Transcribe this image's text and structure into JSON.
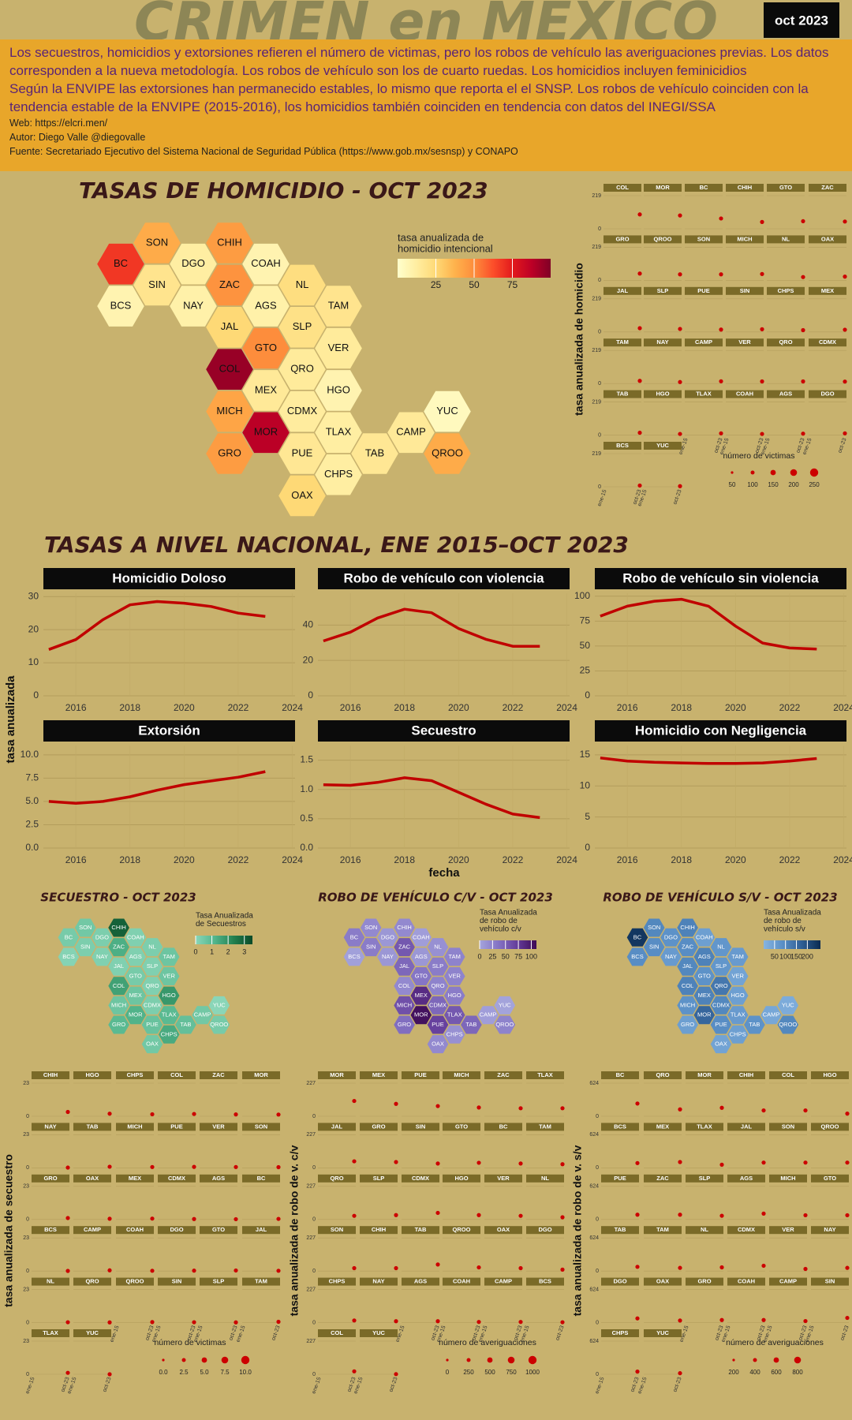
{
  "header": {
    "title": "CRIMEN en MEXICO",
    "badge": "oct 2023",
    "paragraphs": [
      "Los secuestros, homicidios y extorsiones refieren el número de victimas, pero los robos de vehículo las averiguaciones previas. Los datos corresponden a la nueva metodología. Los robos de vehículo son los de cuarto ruedas. Los homicidios incluyen feminicidios",
      "Según la ENVIPE las extorsiones han permanecido estables, lo mismo que reporta el el SNSP. Los robos de vehículo coinciden con la tendencia estable de la ENVIPE (2015-2016), los homicidios también coinciden en tendencia con datos del INEGI/SSA"
    ],
    "credits": [
      "Web: https://elcri.men/",
      "Autor: Diego Valle @diegovalle",
      "Fuente: Secretariado Ejecutivo del Sistema Nacional de Seguridad Pública (https://www.gob.mx/sesnsp) y CONAPO"
    ]
  },
  "states": [
    "BC",
    "SON",
    "CHIH",
    "DGO",
    "COAH",
    "SIN",
    "ZAC",
    "NL",
    "BCS",
    "NAY",
    "AGS",
    "TAM",
    "JAL",
    "SLP",
    "GTO",
    "VER",
    "COL",
    "QRO",
    "MEX",
    "HGO",
    "MICH",
    "CDMX",
    "YUC",
    "MOR",
    "TLAX",
    "CAMP",
    "GRO",
    "PUE",
    "TAB",
    "QROO",
    "CHPS",
    "OAX"
  ],
  "homicide_map": {
    "title": "TASAS DE HOMICIDIO - OCT 2023",
    "legend_title": [
      "tasa anualizada de",
      "homicidio intencional"
    ],
    "limits": [
      0,
      100
    ],
    "ticks": [
      25,
      50,
      75
    ],
    "colors": [
      "#ffffcc",
      "#ffeda0",
      "#fed976",
      "#feb24c",
      "#fd8d3c",
      "#fc4e2a",
      "#e31a1c",
      "#bd0026",
      "#800026"
    ],
    "values": [
      68,
      40,
      45,
      12,
      8,
      18,
      48,
      22,
      8,
      10,
      10,
      18,
      25,
      20,
      50,
      14,
      95,
      14,
      15,
      8,
      42,
      13,
      4,
      88,
      12,
      15,
      45,
      16,
      16,
      40,
      12,
      25
    ]
  },
  "small_maps": [
    {
      "title": "SECUESTRO - OCT 2023",
      "legend_title": [
        "Tasa Anualizada",
        "de Secuestros"
      ],
      "limits": [
        0,
        3.5
      ],
      "ticks": [
        0,
        1,
        2,
        3
      ],
      "colors": [
        "#8ad6b8",
        "#52b58c",
        "#23804f",
        "#0a4a28"
      ],
      "values": [
        0.4,
        0.5,
        3.0,
        0.3,
        0.2,
        0.3,
        1.3,
        0.3,
        0.1,
        0.2,
        0.2,
        0.6,
        0.2,
        0.2,
        0.4,
        0.6,
        1.6,
        0.2,
        0.6,
        1.8,
        0.6,
        0.3,
        0,
        1.2,
        1.0,
        0.5,
        1.0,
        0.7,
        0.8,
        0.4,
        1.4,
        0.5
      ]
    },
    {
      "title": "ROBO DE VEHÍCULO C/V - OCT 2023",
      "legend_title": [
        "Tasa Anualizada",
        "de robo de",
        "vehículo c/v"
      ],
      "limits": [
        0,
        110
      ],
      "ticks": [
        0,
        25,
        50,
        75,
        100
      ],
      "colors": [
        "#a4a4dc",
        "#8473c4",
        "#643c9a",
        "#3e0a55"
      ],
      "values": [
        30,
        20,
        20,
        10,
        5,
        30,
        55,
        15,
        3,
        10,
        10,
        25,
        45,
        30,
        35,
        25,
        20,
        25,
        85,
        30,
        60,
        45,
        1,
        105,
        55,
        5,
        40,
        70,
        45,
        25,
        15,
        20
      ]
    },
    {
      "title": "ROBO DE VEHÍCULO S/V - OCT 2023",
      "legend_title": [
        "Tasa Anualizada",
        "de robo de",
        "vehículo s/v"
      ],
      "limits": [
        0,
        260
      ],
      "ticks": [
        50,
        100,
        150,
        200
      ],
      "colors": [
        "#86b4e0",
        "#5a8fc6",
        "#2f5f95",
        "#0a2b50"
      ],
      "values": [
        240,
        100,
        110,
        80,
        50,
        90,
        90,
        70,
        90,
        60,
        110,
        60,
        100,
        70,
        80,
        40,
        110,
        130,
        110,
        50,
        80,
        100,
        20,
        160,
        60,
        30,
        50,
        90,
        80,
        100,
        50,
        40
      ]
    }
  ],
  "national": {
    "title": "TASAS A NIVEL NACIONAL, ENE 2015–OCT 2023",
    "y_label": "tasa anualizada",
    "x_label": "fecha"
  },
  "chart_data": [
    {
      "type": "line",
      "title": "Homicidio Doloso",
      "x": [
        2015,
        2016,
        2017,
        2018,
        2019,
        2020,
        2021,
        2022,
        2023
      ],
      "values": [
        14,
        17,
        23,
        27.5,
        28.5,
        28,
        27,
        25,
        24
      ],
      "color": "#c00000",
      "xlim": [
        2014.8,
        2024.1
      ],
      "xticks": [
        2016,
        2018,
        2020,
        2022,
        2024
      ],
      "ylim": [
        0,
        31
      ],
      "yticks": [
        0,
        10,
        20,
        30
      ],
      "grid": true
    },
    {
      "type": "line",
      "title": "Robo de vehículo con violencia",
      "x": [
        2015,
        2016,
        2017,
        2018,
        2019,
        2020,
        2021,
        2022,
        2023
      ],
      "values": [
        31,
        36,
        44,
        49,
        47,
        38,
        32,
        28,
        28
      ],
      "color": "#c00000",
      "xlim": [
        2014.8,
        2024.1
      ],
      "xticks": [
        2016,
        2018,
        2020,
        2022,
        2024
      ],
      "ylim": [
        0,
        58
      ],
      "yticks": [
        0,
        20,
        40
      ],
      "grid": true
    },
    {
      "type": "line",
      "title": "Robo de vehículo sin violencia",
      "x": [
        2015,
        2016,
        2017,
        2018,
        2019,
        2020,
        2021,
        2022,
        2023
      ],
      "values": [
        80,
        90,
        95,
        97,
        90,
        70,
        53,
        48,
        47
      ],
      "color": "#c00000",
      "xlim": [
        2014.8,
        2024.1
      ],
      "xticks": [
        2016,
        2018,
        2020,
        2022,
        2024
      ],
      "ylim": [
        0,
        103
      ],
      "yticks": [
        0,
        25,
        50,
        75,
        100
      ],
      "grid": true
    },
    {
      "type": "line",
      "title": "Extorsión",
      "x": [
        2015,
        2016,
        2017,
        2018,
        2019,
        2020,
        2021,
        2022,
        2023
      ],
      "values": [
        5.0,
        4.8,
        5.0,
        5.5,
        6.2,
        6.8,
        7.2,
        7.6,
        8.2
      ],
      "color": "#c00000",
      "xlim": [
        2014.8,
        2024.1
      ],
      "xticks": [
        2016,
        2018,
        2020,
        2022,
        2024
      ],
      "ylim": [
        0,
        11
      ],
      "yticks": [
        {
          "value": 0,
          "label": "0.0"
        },
        2.5,
        {
          "value": 5,
          "label": "5.0"
        },
        7.5,
        {
          "value": 10,
          "label": "10.0"
        }
      ],
      "grid": true
    },
    {
      "type": "line",
      "title": "Secuestro",
      "x": [
        2015,
        2016,
        2017,
        2018,
        2019,
        2020,
        2021,
        2022,
        2023
      ],
      "values": [
        1.08,
        1.07,
        1.12,
        1.2,
        1.15,
        0.95,
        0.75,
        0.58,
        0.52
      ],
      "color": "#c00000",
      "xlim": [
        2014.8,
        2024.1
      ],
      "xticks": [
        2016,
        2018,
        2020,
        2022,
        2024
      ],
      "ylim": [
        0,
        1.75
      ],
      "yticks": [
        {
          "value": 0,
          "label": "0.0"
        },
        0.5,
        {
          "value": 1,
          "label": "1.0"
        },
        1.5
      ],
      "grid": true
    },
    {
      "type": "line",
      "title": "Homicidio con Negligencia",
      "x": [
        2015,
        2016,
        2017,
        2018,
        2019,
        2020,
        2021,
        2022,
        2023
      ],
      "values": [
        14.5,
        14,
        13.8,
        13.7,
        13.6,
        13.6,
        13.7,
        14,
        14.4
      ],
      "color": "#c00000",
      "xlim": [
        2014.8,
        2024.1
      ],
      "xticks": [
        2016,
        2018,
        2020,
        2022,
        2024
      ],
      "ylim": [
        0,
        16.5
      ],
      "yticks": [
        0,
        5,
        10,
        15
      ],
      "grid": true
    }
  ],
  "grids": [
    {
      "y_label": "tasa anualizada de homicidio",
      "ylim": [
        0,
        219
      ],
      "yticks": [
        0,
        219
      ],
      "xtick_labels": [
        "ene-15",
        "oct-23"
      ],
      "states": [
        "COL",
        "MOR",
        "BC",
        "CHIH",
        "GTO",
        "ZAC",
        "GRO",
        "QROO",
        "SON",
        "MICH",
        "NL",
        "OAX",
        "JAL",
        "SLP",
        "PUE",
        "SIN",
        "CHPS",
        "MEX",
        "TAM",
        "NAY",
        "CAMP",
        "VER",
        "QRO",
        "CDMX",
        "TAB",
        "HGO",
        "TLAX",
        "COAH",
        "AGS",
        "DGO",
        "BCS",
        "YUC"
      ],
      "values": [
        95,
        88,
        68,
        45,
        50,
        48,
        45,
        40,
        40,
        42,
        22,
        25,
        25,
        20,
        16,
        18,
        12,
        15,
        18,
        10,
        15,
        14,
        14,
        13,
        16,
        8,
        12,
        8,
        10,
        12,
        8,
        4
      ],
      "size_title": "número de victimas",
      "size_ticks": [
        50,
        100,
        150,
        200,
        250
      ]
    },
    {
      "y_label": "tasa anualizada de secuestro",
      "ylim": [
        0,
        23
      ],
      "yticks": [
        0,
        23
      ],
      "xtick_labels": [
        "ene-15",
        "oct-23"
      ],
      "states": [
        "CHIH",
        "HGO",
        "CHPS",
        "COL",
        "ZAC",
        "MOR",
        "NAY",
        "TAB",
        "MICH",
        "PUE",
        "VER",
        "SON",
        "GRO",
        "OAX",
        "MEX",
        "CDMX",
        "AGS",
        "BC",
        "BCS",
        "CAMP",
        "COAH",
        "DGO",
        "GTO",
        "JAL",
        "NL",
        "QRO",
        "QROO",
        "SIN",
        "SLP",
        "TAM",
        "TLAX",
        "YUC"
      ],
      "values": [
        3.0,
        1.8,
        1.4,
        1.6,
        1.3,
        1.2,
        0.2,
        0.8,
        0.6,
        0.7,
        0.6,
        0.5,
        1.0,
        0.5,
        0.6,
        0.3,
        0.2,
        0.4,
        0.1,
        0.5,
        0.2,
        0.3,
        0.4,
        0.2,
        0.3,
        0.2,
        0.4,
        0.3,
        0.2,
        0.6,
        1.0,
        0
      ],
      "size_title": "número de victimas",
      "size_ticks": [
        {
          "value": 0,
          "label": "0.0"
        },
        2.5,
        {
          "value": 5,
          "label": "5.0"
        },
        7.5,
        {
          "value": 10,
          "label": "10.0"
        }
      ]
    },
    {
      "y_label": "tasa anualizada de robo de v. c/v",
      "ylim": [
        0,
        227
      ],
      "yticks": [
        0,
        227
      ],
      "xtick_labels": [
        "ene-15",
        "oct-23"
      ],
      "states": [
        "MOR",
        "MEX",
        "PUE",
        "MICH",
        "ZAC",
        "TLAX",
        "JAL",
        "GRO",
        "SIN",
        "GTO",
        "BC",
        "TAM",
        "QRO",
        "SLP",
        "CDMX",
        "HGO",
        "VER",
        "NL",
        "SON",
        "CHIH",
        "TAB",
        "QROO",
        "OAX",
        "DGO",
        "CHPS",
        "NAY",
        "AGS",
        "COAH",
        "CAMP",
        "BCS",
        "COL",
        "YUC"
      ],
      "values": [
        105,
        85,
        70,
        60,
        55,
        55,
        45,
        40,
        30,
        35,
        30,
        25,
        25,
        30,
        45,
        30,
        25,
        15,
        20,
        20,
        45,
        25,
        20,
        10,
        15,
        10,
        10,
        5,
        5,
        3,
        20,
        1
      ],
      "size_title": "número de averiguaciones",
      "size_ticks": [
        0,
        250,
        500,
        750,
        1000
      ]
    },
    {
      "y_label": "tasa anualizada de robo de v. s/v",
      "ylim": [
        0,
        624
      ],
      "yticks": [
        0,
        624
      ],
      "xtick_labels": [
        "ene-15",
        "oct-23"
      ],
      "states": [
        "BC",
        "QRO",
        "MOR",
        "CHIH",
        "COL",
        "HGO",
        "BCS",
        "MEX",
        "TLAX",
        "JAL",
        "SON",
        "QROO",
        "PUE",
        "ZAC",
        "SLP",
        "AGS",
        "MICH",
        "GTO",
        "TAB",
        "TAM",
        "NL",
        "CDMX",
        "VER",
        "NAY",
        "DGO",
        "OAX",
        "GRO",
        "COAH",
        "CAMP",
        "SIN",
        "CHPS",
        "YUC"
      ],
      "values": [
        240,
        130,
        160,
        110,
        110,
        50,
        90,
        110,
        60,
        100,
        100,
        100,
        90,
        90,
        70,
        110,
        80,
        80,
        80,
        60,
        70,
        100,
        40,
        60,
        80,
        40,
        50,
        50,
        30,
        90,
        50,
        20
      ],
      "size_title": "número de averiguaciones",
      "size_ticks": [
        200,
        400,
        600,
        800
      ]
    }
  ]
}
